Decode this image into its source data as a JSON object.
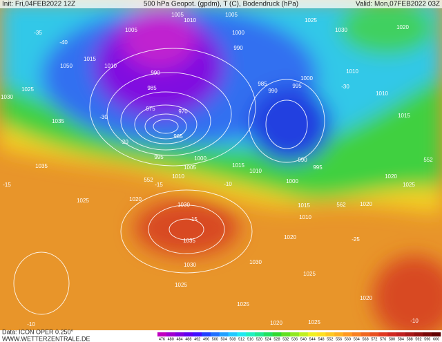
{
  "header": {
    "init": "Init: Fri,04FEB2022 12Z",
    "title": "500 hPa Geopot. (gpdm), T (C), Bodendruck (hPa)",
    "valid": "Valid: Mon,07FEB2022 03Z"
  },
  "footer": {
    "data": "Data: ICON OPER 0.250°",
    "site": "WWW.WETTERZENTRALE.DE"
  },
  "colorbar": {
    "labels": [
      476,
      480,
      484,
      488,
      492,
      496,
      500,
      504,
      508,
      512,
      516,
      520,
      524,
      528,
      532,
      536,
      540,
      544,
      548,
      552,
      556,
      560,
      564,
      568,
      572,
      576,
      580,
      584,
      588,
      592,
      596,
      600
    ],
    "colors": [
      "#c000c0",
      "#a000d0",
      "#8000e0",
      "#6000f0",
      "#4010ff",
      "#2040ff",
      "#2070ff",
      "#20a0ff",
      "#20c8ff",
      "#20e8f0",
      "#20f0c0",
      "#20e890",
      "#20e060",
      "#30d830",
      "#60e020",
      "#90e820",
      "#c0f020",
      "#f0f020",
      "#ffe020",
      "#ffc820",
      "#ffb020",
      "#ff9820",
      "#f88020",
      "#f06820",
      "#e85020",
      "#e03820",
      "#d02820",
      "#c02020",
      "#a81818",
      "#901010",
      "#780808",
      "#600000"
    ]
  },
  "isobar_labels": [
    1005,
    1010,
    1015,
    1050,
    1025,
    1035,
    1030,
    975,
    970,
    965,
    985,
    990,
    995,
    1000,
    1005,
    1010,
    1035,
    1025,
    1020,
    1030,
    1035,
    1030,
    1025,
    1020,
    1025,
    1030,
    1015,
    1010,
    1000,
    995,
    990,
    1000,
    995,
    985,
    990,
    1010,
    1010,
    1015,
    1020,
    1025,
    1030,
    1020,
    1025,
    1020,
    1015,
    1010,
    1020,
    1025,
    1020,
    1025,
    1000,
    1005,
    1010,
    990,
    1005
  ],
  "geopotential_labels": [
    552,
    562,
    552
  ],
  "temperature_labels": [
    "-15",
    "-10",
    "-35",
    "-40",
    "-30",
    "-20",
    "-15",
    "-10",
    "-25",
    "-30",
    "-15",
    "-10"
  ]
}
